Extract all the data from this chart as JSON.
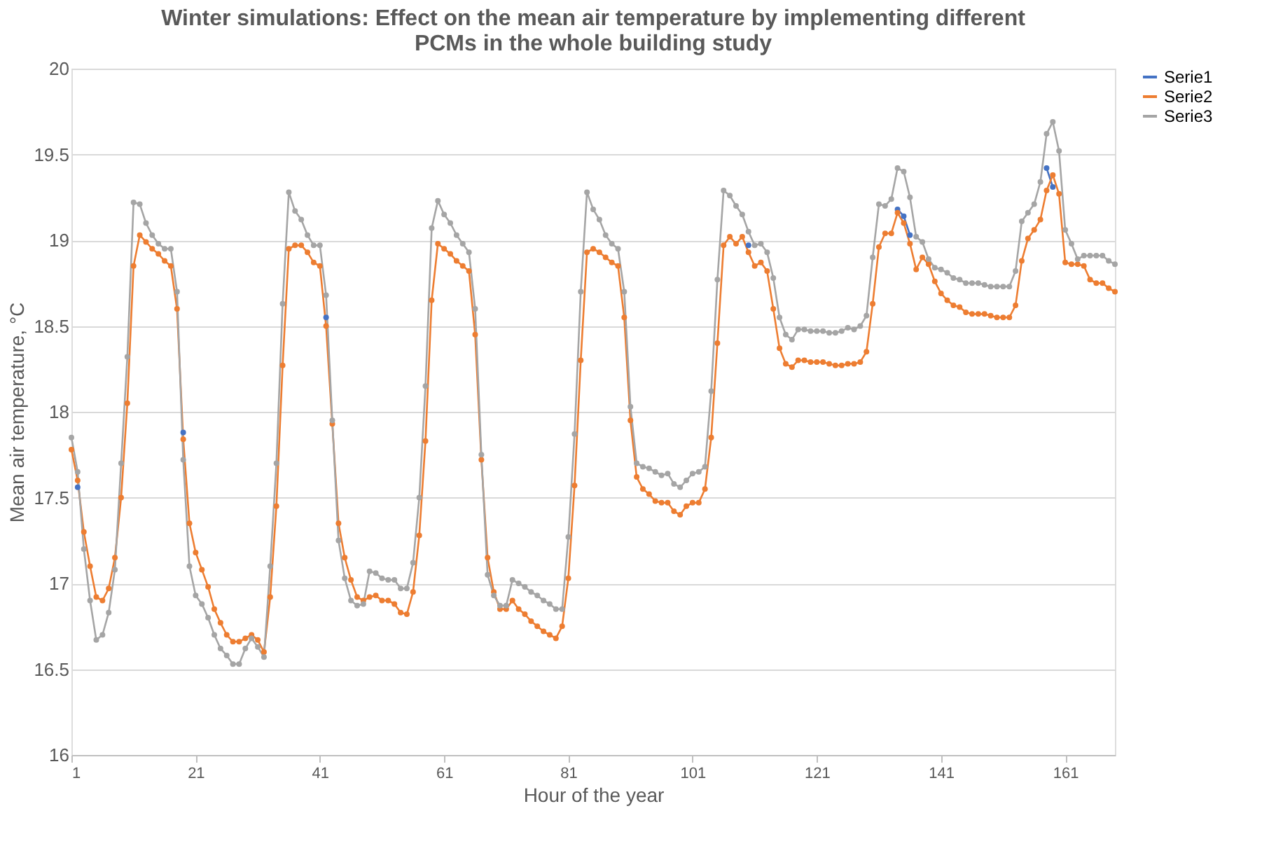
{
  "chart_data": {
    "type": "line",
    "title": "Winter simulations: Effect on the mean air temperature by implementing different PCMs in the whole building study",
    "xlabel": "Hour of the year",
    "ylabel": "Mean air temperature, °C",
    "x": [
      1,
      2,
      3,
      4,
      5,
      6,
      7,
      8,
      9,
      10,
      11,
      12,
      13,
      14,
      15,
      16,
      17,
      18,
      19,
      20,
      21,
      22,
      23,
      24,
      25,
      26,
      27,
      28,
      29,
      30,
      31,
      32,
      33,
      34,
      35,
      36,
      37,
      38,
      39,
      40,
      41,
      42,
      43,
      44,
      45,
      46,
      47,
      48,
      49,
      50,
      51,
      52,
      53,
      54,
      55,
      56,
      57,
      58,
      59,
      60,
      61,
      62,
      63,
      64,
      65,
      66,
      67,
      68,
      69,
      70,
      71,
      72,
      73,
      74,
      75,
      76,
      77,
      78,
      79,
      80,
      81,
      82,
      83,
      84,
      85,
      86,
      87,
      88,
      89,
      90,
      91,
      92,
      93,
      94,
      95,
      96,
      97,
      98,
      99,
      100,
      101,
      102,
      103,
      104,
      105,
      106,
      107,
      108,
      109,
      110,
      111,
      112,
      113,
      114,
      115,
      116,
      117,
      118,
      119,
      120,
      121,
      122,
      123,
      124,
      125,
      126,
      127,
      128,
      129,
      130,
      131,
      132,
      133,
      134,
      135,
      136,
      137,
      138,
      139,
      140,
      141,
      142,
      143,
      144,
      145,
      146,
      147,
      148,
      149,
      150,
      151,
      152,
      153,
      154,
      155,
      156,
      157,
      158,
      159,
      160,
      161,
      162,
      163,
      164,
      165,
      166,
      167,
      168,
      169
    ],
    "series": [
      {
        "name": "Serie1",
        "color": "#4472c4",
        "values": [
          null,
          17.56,
          null,
          null,
          null,
          null,
          null,
          null,
          null,
          null,
          null,
          null,
          null,
          null,
          null,
          null,
          null,
          null,
          17.88,
          null,
          null,
          null,
          null,
          null,
          null,
          null,
          null,
          null,
          null,
          null,
          null,
          null,
          null,
          null,
          null,
          null,
          null,
          null,
          null,
          null,
          null,
          18.55,
          null,
          null,
          null,
          null,
          null,
          null,
          null,
          null,
          null,
          null,
          null,
          null,
          null,
          null,
          null,
          null,
          null,
          null,
          null,
          null,
          null,
          null,
          null,
          null,
          null,
          null,
          null,
          null,
          null,
          null,
          null,
          null,
          null,
          null,
          null,
          null,
          null,
          null,
          null,
          null,
          null,
          null,
          null,
          null,
          null,
          null,
          null,
          null,
          null,
          null,
          null,
          null,
          null,
          null,
          null,
          null,
          null,
          null,
          null,
          null,
          null,
          null,
          null,
          null,
          null,
          null,
          null,
          18.97,
          null,
          null,
          null,
          null,
          null,
          null,
          null,
          null,
          null,
          null,
          null,
          null,
          null,
          null,
          null,
          null,
          null,
          null,
          null,
          null,
          null,
          null,
          null,
          19.18,
          19.14,
          19.03,
          null,
          null,
          null,
          null,
          null,
          null,
          null,
          null,
          null,
          null,
          null,
          null,
          null,
          null,
          null,
          null,
          null,
          null,
          null,
          null,
          null,
          19.42,
          19.31,
          null,
          null,
          null,
          null,
          null,
          null,
          null,
          null,
          null,
          null
        ]
      },
      {
        "name": "Serie2",
        "color": "#ed7d31",
        "values": [
          17.78,
          17.6,
          17.3,
          17.1,
          16.92,
          16.9,
          16.97,
          17.15,
          17.5,
          18.05,
          18.85,
          19.03,
          18.99,
          18.95,
          18.92,
          18.88,
          18.85,
          18.6,
          17.84,
          17.35,
          17.18,
          17.08,
          16.98,
          16.85,
          16.77,
          16.7,
          16.66,
          16.66,
          16.68,
          16.7,
          16.67,
          16.6,
          16.92,
          17.45,
          18.27,
          18.95,
          18.97,
          18.97,
          18.93,
          18.87,
          18.85,
          18.5,
          17.93,
          17.35,
          17.15,
          17.02,
          16.92,
          16.9,
          16.92,
          16.93,
          16.9,
          16.9,
          16.88,
          16.83,
          16.82,
          16.95,
          17.28,
          17.83,
          18.65,
          18.98,
          18.95,
          18.92,
          18.88,
          18.85,
          18.82,
          18.45,
          17.72,
          17.15,
          16.95,
          16.85,
          16.85,
          16.9,
          16.85,
          16.82,
          16.78,
          16.75,
          16.72,
          16.7,
          16.68,
          16.75,
          17.03,
          17.57,
          18.3,
          18.93,
          18.95,
          18.93,
          18.9,
          18.87,
          18.85,
          18.55,
          17.95,
          17.62,
          17.55,
          17.52,
          17.48,
          17.47,
          17.47,
          17.42,
          17.4,
          17.45,
          17.47,
          17.47,
          17.55,
          17.85,
          18.4,
          18.97,
          19.02,
          18.98,
          19.02,
          18.93,
          18.85,
          18.87,
          18.82,
          18.6,
          18.37,
          18.28,
          18.26,
          18.3,
          18.3,
          18.29,
          18.29,
          18.29,
          18.28,
          18.27,
          18.27,
          18.28,
          18.28,
          18.29,
          18.35,
          18.63,
          18.96,
          19.04,
          19.04,
          19.16,
          19.1,
          18.98,
          18.83,
          18.9,
          18.86,
          18.76,
          18.69,
          18.65,
          18.62,
          18.61,
          18.58,
          18.57,
          18.57,
          18.57,
          18.56,
          18.55,
          18.55,
          18.55,
          18.62,
          18.88,
          19.01,
          19.06,
          19.12,
          19.29,
          19.38,
          19.27,
          18.87,
          18.86,
          18.86,
          18.85,
          18.77,
          18.75,
          18.75,
          18.72,
          18.7
        ]
      },
      {
        "name": "Serie3",
        "color": "#a5a5a5",
        "values": [
          17.85,
          17.65,
          17.2,
          16.9,
          16.67,
          16.7,
          16.83,
          17.08,
          17.7,
          18.32,
          19.22,
          19.21,
          19.1,
          19.03,
          18.98,
          18.95,
          18.95,
          18.7,
          17.72,
          17.1,
          16.93,
          16.88,
          16.8,
          16.7,
          16.62,
          16.58,
          16.53,
          16.53,
          16.62,
          16.68,
          16.63,
          16.57,
          17.1,
          17.7,
          18.63,
          19.28,
          19.17,
          19.12,
          19.03,
          18.97,
          18.97,
          18.68,
          17.95,
          17.25,
          17.03,
          16.9,
          16.87,
          16.88,
          17.07,
          17.06,
          17.03,
          17.02,
          17.02,
          16.97,
          16.97,
          17.12,
          17.5,
          18.15,
          19.07,
          19.23,
          19.15,
          19.1,
          19.03,
          18.98,
          18.93,
          18.6,
          17.75,
          17.05,
          16.93,
          16.87,
          16.87,
          17.02,
          17.0,
          16.98,
          16.95,
          16.93,
          16.9,
          16.88,
          16.85,
          16.85,
          17.27,
          17.87,
          18.7,
          19.28,
          19.18,
          19.12,
          19.03,
          18.98,
          18.95,
          18.7,
          18.03,
          17.7,
          17.68,
          17.67,
          17.65,
          17.63,
          17.64,
          17.58,
          17.56,
          17.6,
          17.64,
          17.65,
          17.68,
          18.12,
          18.77,
          19.29,
          19.26,
          19.2,
          19.15,
          19.05,
          18.97,
          18.98,
          18.93,
          18.78,
          18.55,
          18.45,
          18.42,
          18.48,
          18.48,
          18.47,
          18.47,
          18.47,
          18.46,
          18.46,
          18.47,
          18.49,
          18.48,
          18.5,
          18.56,
          18.9,
          19.21,
          19.2,
          19.24,
          19.42,
          19.4,
          19.25,
          19.02,
          18.99,
          18.89,
          18.84,
          18.83,
          18.81,
          18.78,
          18.77,
          18.75,
          18.75,
          18.75,
          18.74,
          18.73,
          18.73,
          18.73,
          18.73,
          18.82,
          19.11,
          19.16,
          19.21,
          19.34,
          19.62,
          19.69,
          19.52,
          19.06,
          18.98,
          18.89,
          18.91,
          18.91,
          18.91,
          18.91,
          18.88,
          18.86
        ]
      }
    ],
    "xlim": [
      1,
      169
    ],
    "xticks": [
      1,
      21,
      41,
      61,
      81,
      101,
      121,
      141,
      161
    ],
    "ylim": [
      16,
      20
    ],
    "yticks": [
      16,
      16.5,
      17,
      17.5,
      18,
      18.5,
      19,
      19.5,
      20
    ],
    "grid": "y",
    "legend": "right",
    "marker": "circle",
    "line_style": "solid"
  }
}
